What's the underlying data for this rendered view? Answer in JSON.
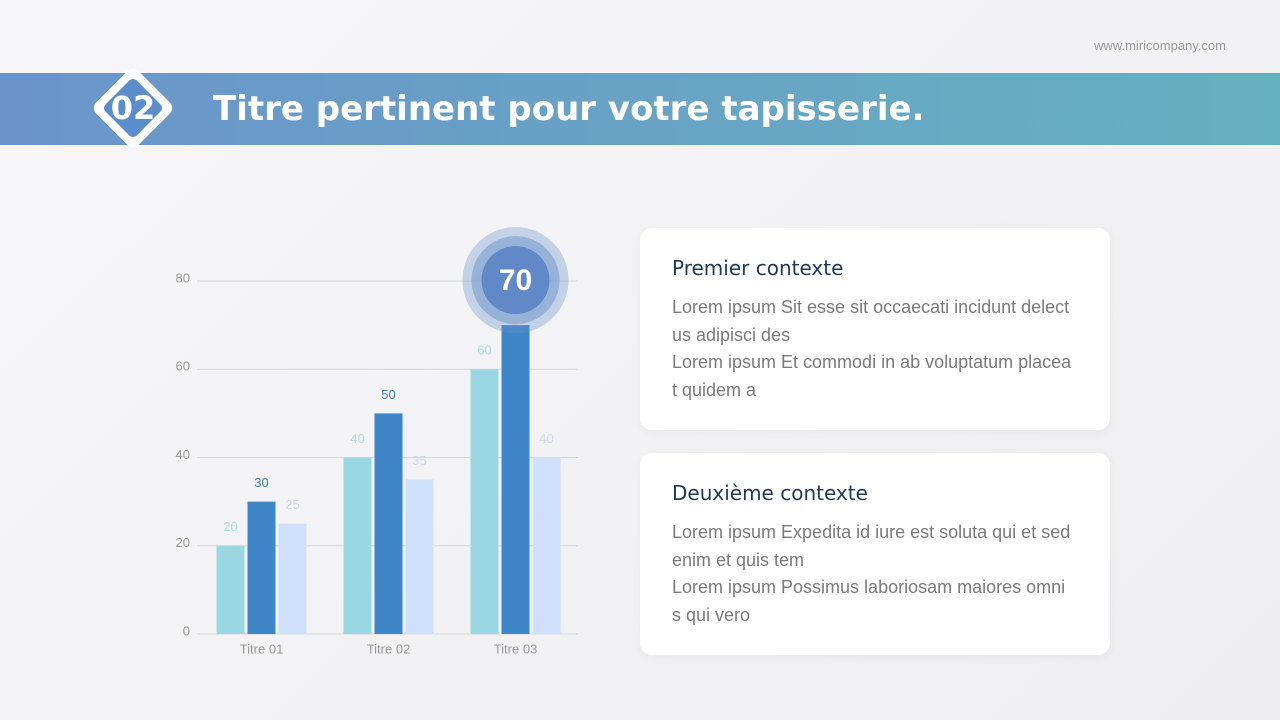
{
  "website": "www.miricompany.com",
  "header": {
    "number": "02",
    "title": "Titre pertinent pour votre tapisserie."
  },
  "cards": [
    {
      "heading": "Premier contexte",
      "paragraphs": [
        "Lorem ipsum Sit esse sit occaecati incidunt delectus adipisci des",
        "Lorem ipsum Et commodi in ab voluptatum placeat quidem a"
      ]
    },
    {
      "heading": "Deuxième contexte",
      "paragraphs": [
        "Lorem ipsum Expedita id iure est soluta qui et sed enim et quis tem",
        "Lorem ipsum Possimus laboriosam maiores omnis qui vero"
      ]
    }
  ],
  "chart_data": {
    "type": "bar",
    "categories": [
      "Titre 01",
      "Titre 02",
      "Titre 03"
    ],
    "series": [
      {
        "color": "#99d8e2",
        "values": [
          20,
          40,
          60
        ]
      },
      {
        "color": "#3f86c8",
        "values": [
          30,
          50,
          70
        ]
      },
      {
        "color": "#cfe0fb",
        "values": [
          25,
          35,
          40
        ]
      }
    ],
    "ylim": [
      0,
      80
    ],
    "yticks": [
      0,
      20,
      40,
      60,
      80
    ],
    "grid": true
  }
}
